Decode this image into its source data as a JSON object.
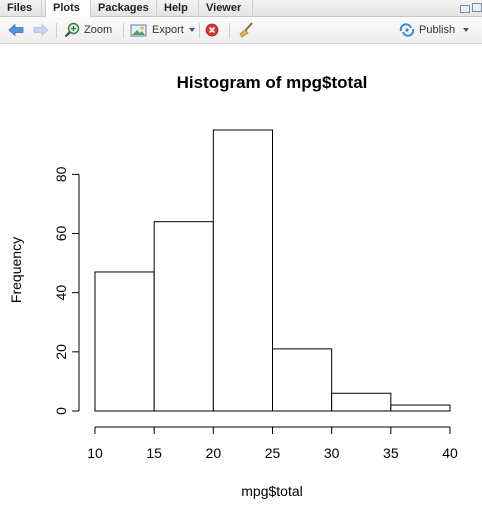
{
  "tabs": [
    {
      "label": "Files"
    },
    {
      "label": "Plots"
    },
    {
      "label": "Packages"
    },
    {
      "label": "Help"
    },
    {
      "label": "Viewer"
    }
  ],
  "active_tab": "Plots",
  "toolbar": {
    "back_icon": "arrow-left-icon",
    "forward_icon": "arrow-right-icon",
    "zoom_label": "Zoom",
    "export_label": "Export",
    "remove_icon": "remove-plot-icon",
    "clear_icon": "broom-icon",
    "publish_label": "Publish"
  },
  "chart_data": {
    "type": "bar",
    "title": "Histogram of mpg$total",
    "xlabel": "mpg$total",
    "ylabel": "Frequency",
    "bins": [
      {
        "from": 10,
        "to": 15,
        "count": 47
      },
      {
        "from": 15,
        "to": 20,
        "count": 64
      },
      {
        "from": 20,
        "to": 25,
        "count": 95
      },
      {
        "from": 25,
        "to": 30,
        "count": 21
      },
      {
        "from": 30,
        "to": 35,
        "count": 6
      },
      {
        "from": 35,
        "to": 40,
        "count": 2
      }
    ],
    "x_ticks": [
      10,
      15,
      20,
      25,
      30,
      35,
      40
    ],
    "y_ticks": [
      0,
      20,
      40,
      60,
      80
    ],
    "xlim": [
      10,
      40
    ],
    "ylim": [
      0,
      95
    ],
    "grid": false
  }
}
